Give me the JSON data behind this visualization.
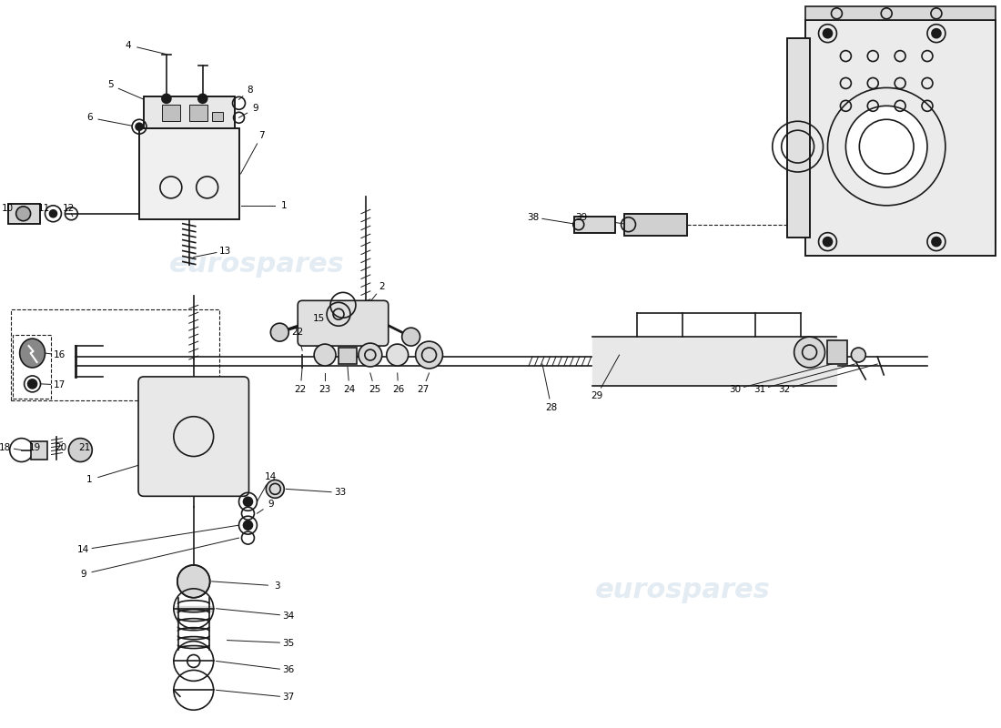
{
  "bg_color": "#ffffff",
  "line_color": "#1a1a1a",
  "watermark_text": "eurospares",
  "watermark_color": "#c8d8e8",
  "fig_width": 11.0,
  "fig_height": 8.0
}
